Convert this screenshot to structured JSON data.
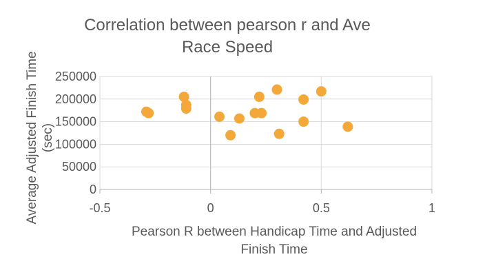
{
  "chart_data": {
    "type": "scatter",
    "title_lines": [
      "Correlation between pearson r and Ave",
      "Race Speed"
    ],
    "xlabel_lines": [
      "Pearson R between Handicap Time and Adjusted",
      "Finish Time"
    ],
    "ylabel_lines": [
      "Average Adjusted Finish Time",
      "(sec)"
    ],
    "xlim": [
      -0.5,
      1
    ],
    "ylim": [
      0,
      250000
    ],
    "x_ticks": [
      -0.5,
      0,
      0.5,
      1
    ],
    "x_tick_labels": [
      "-0.5",
      "0",
      "0.5",
      "1"
    ],
    "y_ticks": [
      0,
      50000,
      100000,
      150000,
      200000,
      250000
    ],
    "y_tick_labels": [
      "0",
      "50000",
      "100000",
      "150000",
      "200000",
      "250000"
    ],
    "grid": true,
    "marker_color": "#f4a83a",
    "points": [
      {
        "x": -0.29,
        "y": 172000
      },
      {
        "x": -0.28,
        "y": 169000
      },
      {
        "x": -0.12,
        "y": 205000
      },
      {
        "x": -0.11,
        "y": 187000
      },
      {
        "x": -0.11,
        "y": 179000
      },
      {
        "x": 0.04,
        "y": 161000
      },
      {
        "x": 0.09,
        "y": 120000
      },
      {
        "x": 0.13,
        "y": 157000
      },
      {
        "x": 0.2,
        "y": 169000
      },
      {
        "x": 0.22,
        "y": 205000
      },
      {
        "x": 0.23,
        "y": 169000
      },
      {
        "x": 0.3,
        "y": 221000
      },
      {
        "x": 0.31,
        "y": 123000
      },
      {
        "x": 0.42,
        "y": 199000
      },
      {
        "x": 0.42,
        "y": 150000
      },
      {
        "x": 0.5,
        "y": 217000
      },
      {
        "x": 0.62,
        "y": 139000
      }
    ]
  }
}
